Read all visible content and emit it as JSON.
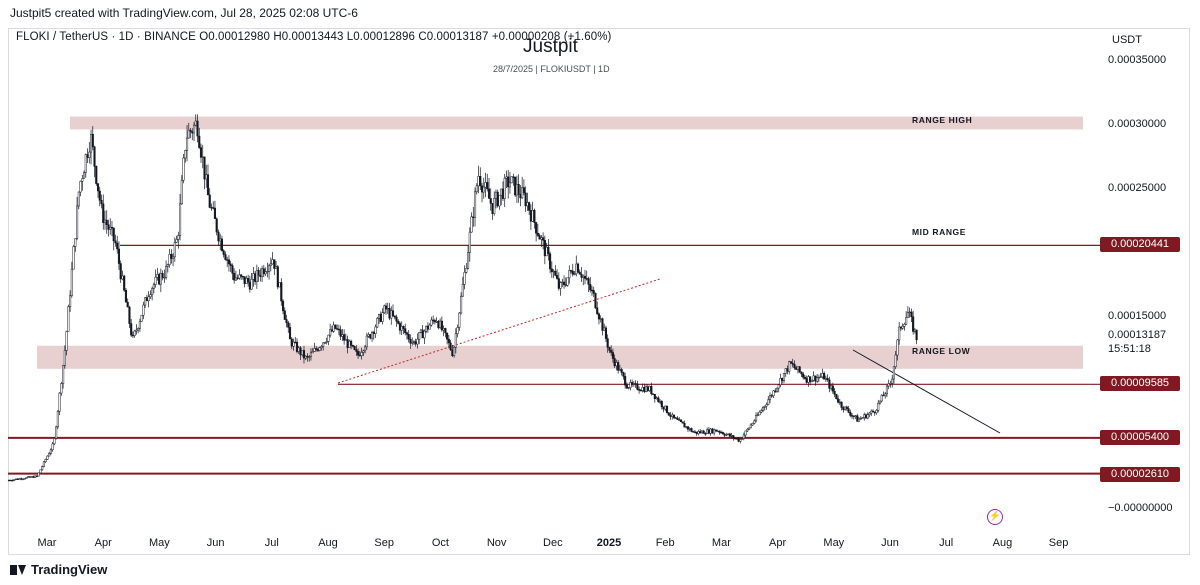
{
  "header": {
    "created_by": "Justpit5 created with TradingView.com, Jul 28, 2025 02:08 UTC-6",
    "symbol": "FLOKI / TetherUS · 1D · BINANCE",
    "open": "O0.00012980",
    "high": "H0.00013443",
    "low": "L0.00012896",
    "close": "C0.00013187",
    "change": "+0.00000208 (+1.60%)"
  },
  "watermark": {
    "title": "Justpit",
    "subtitle": "28/7/2025 | FLOKIUSDT | 1D"
  },
  "footer": {
    "brand": "TradingView"
  },
  "colors": {
    "zone_fill": "#e8cfd0",
    "line": "#801922",
    "candle": "#131722",
    "trend": "#c62828",
    "lightning": "#9c27b0"
  },
  "chart_data": {
    "type": "candlestick",
    "title": "Justpit",
    "subtitle": "28/7/2025 | FLOKIUSDT | 1D",
    "currency": "USDT",
    "y_ticks": [
      "0.00035000",
      "0.00030000",
      "0.00025000",
      "0.00015000",
      "−0.00000000"
    ],
    "ylim": [
      -0.0,
      0.00035
    ],
    "x_labels": [
      "Mar",
      "Apr",
      "May",
      "Jun",
      "Jul",
      "Aug",
      "Sep",
      "Oct",
      "Nov",
      "Dec",
      "2025",
      "Feb",
      "Mar",
      "Apr",
      "May",
      "Jun",
      "Jul",
      "Aug",
      "Sep"
    ],
    "current_price": "0.00013187",
    "countdown": "15:51:18",
    "levels": [
      {
        "value": 0.00020441,
        "label": "0.00020441"
      },
      {
        "value": 9.585e-05,
        "label": "0.00009585"
      },
      {
        "value": 5.4e-05,
        "label": "0.00005400"
      },
      {
        "value": 2.61e-05,
        "label": "0.00002610"
      }
    ],
    "zones": [
      {
        "name": "RANGE HIGH",
        "low": 0.000295,
        "high": 0.000305
      },
      {
        "name": "RANGE LOW",
        "low": 0.000108,
        "high": 0.000126
      }
    ],
    "annotations": [
      "RANGE HIGH",
      "MID RANGE",
      "RANGE LOW"
    ],
    "close_series": [
      {
        "t": 0,
        "v": 2.1e-05
      },
      {
        "t": 0.5,
        "v": 2.4e-05
      },
      {
        "t": 0.8,
        "v": 5e-05
      },
      {
        "t": 1.0,
        "v": 0.000125
      },
      {
        "t": 1.25,
        "v": 0.00025
      },
      {
        "t": 1.45,
        "v": 0.00029
      },
      {
        "t": 1.65,
        "v": 0.00023
      },
      {
        "t": 1.9,
        "v": 0.000205
      },
      {
        "t": 2.2,
        "v": 0.00013
      },
      {
        "t": 2.5,
        "v": 0.00017
      },
      {
        "t": 2.8,
        "v": 0.000185
      },
      {
        "t": 3.0,
        "v": 0.00021
      },
      {
        "t": 3.15,
        "v": 0.00029
      },
      {
        "t": 3.35,
        "v": 0.0003
      },
      {
        "t": 3.55,
        "v": 0.00024
      },
      {
        "t": 3.75,
        "v": 0.00021
      },
      {
        "t": 4.0,
        "v": 0.00018
      },
      {
        "t": 4.3,
        "v": 0.000175
      },
      {
        "t": 4.7,
        "v": 0.000195
      },
      {
        "t": 5.0,
        "v": 0.00013
      },
      {
        "t": 5.3,
        "v": 0.000115
      },
      {
        "t": 5.8,
        "v": 0.00014
      },
      {
        "t": 6.2,
        "v": 0.000118
      },
      {
        "t": 6.7,
        "v": 0.000155
      },
      {
        "t": 7.2,
        "v": 0.000128
      },
      {
        "t": 7.6,
        "v": 0.000148
      },
      {
        "t": 7.9,
        "v": 0.00012
      },
      {
        "t": 8.1,
        "v": 0.00018
      },
      {
        "t": 8.35,
        "v": 0.00026
      },
      {
        "t": 8.6,
        "v": 0.000235
      },
      {
        "t": 8.9,
        "v": 0.000255
      },
      {
        "t": 9.2,
        "v": 0.00024
      },
      {
        "t": 9.5,
        "v": 0.000205
      },
      {
        "t": 9.8,
        "v": 0.00017
      },
      {
        "t": 10.1,
        "v": 0.00019
      },
      {
        "t": 10.4,
        "v": 0.000165
      },
      {
        "t": 10.7,
        "v": 0.00012
      },
      {
        "t": 11.0,
        "v": 9.5e-05
      },
      {
        "t": 11.4,
        "v": 9.2e-05
      },
      {
        "t": 11.8,
        "v": 7e-05
      },
      {
        "t": 12.2,
        "v": 5.8e-05
      },
      {
        "t": 12.6,
        "v": 6e-05
      },
      {
        "t": 13.0,
        "v": 5.2e-05
      },
      {
        "t": 13.3,
        "v": 7e-05
      },
      {
        "t": 13.6,
        "v": 9e-05
      },
      {
        "t": 13.9,
        "v": 0.000112
      },
      {
        "t": 14.2,
        "v": 0.0001
      },
      {
        "t": 14.5,
        "v": 0.000102
      },
      {
        "t": 14.8,
        "v": 8e-05
      },
      {
        "t": 15.1,
        "v": 6.8e-05
      },
      {
        "t": 15.4,
        "v": 7.5e-05
      },
      {
        "t": 15.7,
        "v": 9.8e-05
      },
      {
        "t": 15.85,
        "v": 0.00014
      },
      {
        "t": 16.0,
        "v": 0.000152
      },
      {
        "t": 16.15,
        "v": 0.000132
      }
    ]
  }
}
